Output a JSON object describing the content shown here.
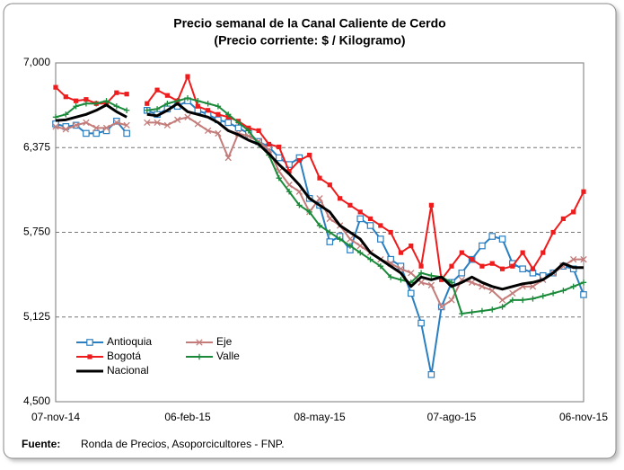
{
  "chart_data": {
    "type": "line",
    "title": "Precio semanal de la Canal Caliente de Cerdo",
    "subtitle": "(Precio corriente: $ / Kilogramo)",
    "source_label": "Fuente:",
    "source_text": "Ronda de Precios, Asoporcicultores  - FNP.",
    "categories": [
      "07-nov-14",
      null,
      null,
      null,
      null,
      null,
      null,
      null,
      null,
      null,
      null,
      null,
      null,
      "06-feb-15",
      null,
      null,
      null,
      null,
      null,
      null,
      null,
      null,
      null,
      null,
      null,
      null,
      "08-may-15",
      null,
      null,
      null,
      null,
      null,
      null,
      null,
      null,
      null,
      null,
      null,
      null,
      "07-ago-15",
      null,
      null,
      null,
      null,
      null,
      null,
      null,
      null,
      null,
      null,
      null,
      null,
      "06-nov-15"
    ],
    "ylim": [
      4500,
      7000
    ],
    "yticks": [
      {
        "value": 4500,
        "label": "4,500"
      },
      {
        "value": 5125,
        "label": "5,125"
      },
      {
        "value": 5750,
        "label": "5,750"
      },
      {
        "value": 6375,
        "label": "6,375"
      },
      {
        "value": 7000,
        "label": "7,000"
      }
    ],
    "grid": true,
    "legend": "lower left",
    "series": [
      {
        "name": "Antioquia",
        "color": "#2a7fc1",
        "marker": "square-open",
        "values": [
          6550,
          6530,
          6540,
          6480,
          6480,
          6500,
          6570,
          6480,
          null,
          6650,
          6620,
          6660,
          6680,
          6720,
          6650,
          6620,
          6580,
          6560,
          6520,
          6480,
          6420,
          6380,
          6300,
          6250,
          6300,
          6000,
          5950,
          5680,
          5720,
          5620,
          5850,
          5800,
          5700,
          5550,
          5500,
          5300,
          5080,
          4700,
          5200,
          5380,
          5450,
          5550,
          5650,
          5720,
          5700,
          5520,
          5480,
          5450,
          5430,
          5450,
          5500,
          5480,
          5290
        ]
      },
      {
        "name": "Eje",
        "color": "#c47c7a",
        "marker": "x",
        "values": [
          6530,
          6510,
          6540,
          6560,
          6520,
          6520,
          6560,
          6540,
          null,
          6560,
          6560,
          6540,
          6580,
          6600,
          6550,
          6500,
          6480,
          6300,
          6480,
          6460,
          6420,
          6360,
          6200,
          6100,
          6050,
          5900,
          6000,
          5850,
          5800,
          5700,
          5650,
          5600,
          5550,
          5520,
          5480,
          5450,
          5380,
          5360,
          5200,
          5250,
          5400,
          5380,
          5350,
          5320,
          5250,
          5300,
          5350,
          5350,
          5400,
          5450,
          5500,
          5550,
          5550
        ]
      },
      {
        "name": "Bogotá",
        "color": "#ee1c1c",
        "marker": "square",
        "values": [
          6820,
          6750,
          6720,
          6730,
          6700,
          6700,
          6780,
          6770,
          null,
          6700,
          6800,
          6760,
          6720,
          6900,
          6680,
          6650,
          6620,
          6600,
          6570,
          6520,
          6500,
          6400,
          6380,
          6200,
          6280,
          6320,
          6150,
          6100,
          6000,
          5950,
          5900,
          5850,
          5800,
          5750,
          5600,
          5650,
          5500,
          5950,
          5400,
          5500,
          5600,
          5550,
          5500,
          5520,
          5480,
          5500,
          5600,
          5480,
          5600,
          5750,
          5850,
          5900,
          6050
        ]
      },
      {
        "name": "Valle",
        "color": "#1a8a3a",
        "marker": "plus",
        "values": [
          6600,
          6620,
          6680,
          6700,
          6700,
          6720,
          6680,
          6650,
          null,
          6650,
          6660,
          6700,
          6720,
          6740,
          6720,
          6700,
          6680,
          6620,
          6560,
          6500,
          6400,
          6320,
          6150,
          6050,
          5950,
          5900,
          5800,
          5750,
          5700,
          5650,
          5600,
          5550,
          5500,
          5420,
          5400,
          5380,
          5450,
          5430,
          5420,
          5380,
          5150,
          5160,
          5170,
          5180,
          5200,
          5250,
          5250,
          5260,
          5280,
          5300,
          5320,
          5350,
          5380
        ]
      },
      {
        "name": "Nacional",
        "color": "#000000",
        "marker": "none",
        "values": [
          6575,
          6580,
          6600,
          6620,
          6650,
          6690,
          6640,
          6600,
          null,
          6620,
          6610,
          6650,
          6700,
          6640,
          6620,
          6600,
          6560,
          6500,
          6470,
          6430,
          6400,
          6330,
          6250,
          6180,
          6100,
          6000,
          5950,
          5900,
          5800,
          5750,
          5700,
          5600,
          5550,
          5500,
          5450,
          5350,
          5420,
          5400,
          5420,
          5350,
          5380,
          5420,
          5380,
          5350,
          5330,
          5350,
          5370,
          5380,
          5400,
          5450,
          5520,
          5490,
          5490
        ]
      }
    ]
  }
}
